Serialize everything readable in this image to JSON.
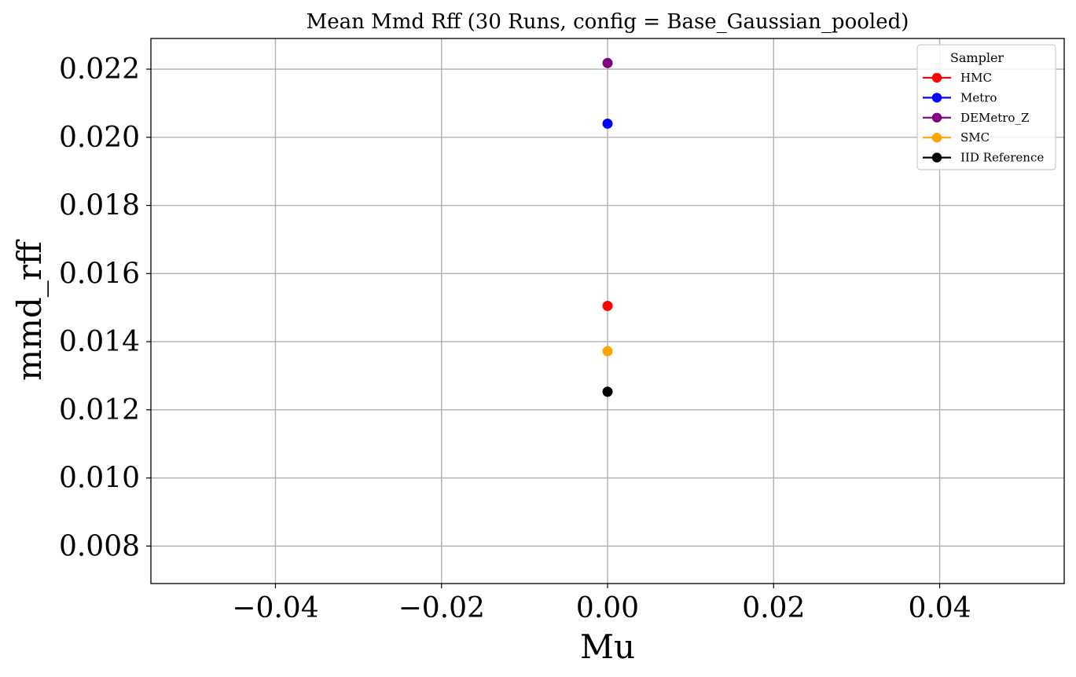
{
  "chart_data": {
    "type": "scatter",
    "title": "Mean Mmd Rff (30 Runs, config = Base_Gaussian_pooled)",
    "xlabel": "Mu",
    "ylabel": "mmd_rff",
    "xlim": [
      -0.055,
      0.055
    ],
    "ylim": [
      0.0069,
      0.0229
    ],
    "xticks": [
      -0.04,
      -0.02,
      0.0,
      0.02,
      0.04
    ],
    "xtick_labels": [
      "−0.04",
      "−0.02",
      "0.00",
      "0.02",
      "0.04"
    ],
    "yticks": [
      0.008,
      0.01,
      0.012,
      0.014,
      0.016,
      0.018,
      0.02,
      0.022
    ],
    "ytick_labels": [
      "0.008",
      "0.010",
      "0.012",
      "0.014",
      "0.016",
      "0.018",
      "0.020",
      "0.022"
    ],
    "grid": true,
    "legend": {
      "title": "Sampler",
      "position": "top-right"
    },
    "series": [
      {
        "name": "HMC",
        "color": "#ff0000",
        "x": [
          0.0
        ],
        "y": [
          0.01505
        ]
      },
      {
        "name": "Metro",
        "color": "#0000ff",
        "x": [
          0.0
        ],
        "y": [
          0.0204
        ]
      },
      {
        "name": "DEMetro_Z",
        "color": "#800080",
        "x": [
          0.0
        ],
        "y": [
          0.02218
        ]
      },
      {
        "name": "SMC",
        "color": "#ffa500",
        "x": [
          0.0
        ],
        "y": [
          0.01372
        ]
      },
      {
        "name": "IID Reference",
        "color": "#000000",
        "x": [
          0.0
        ],
        "y": [
          0.01253
        ]
      }
    ]
  }
}
